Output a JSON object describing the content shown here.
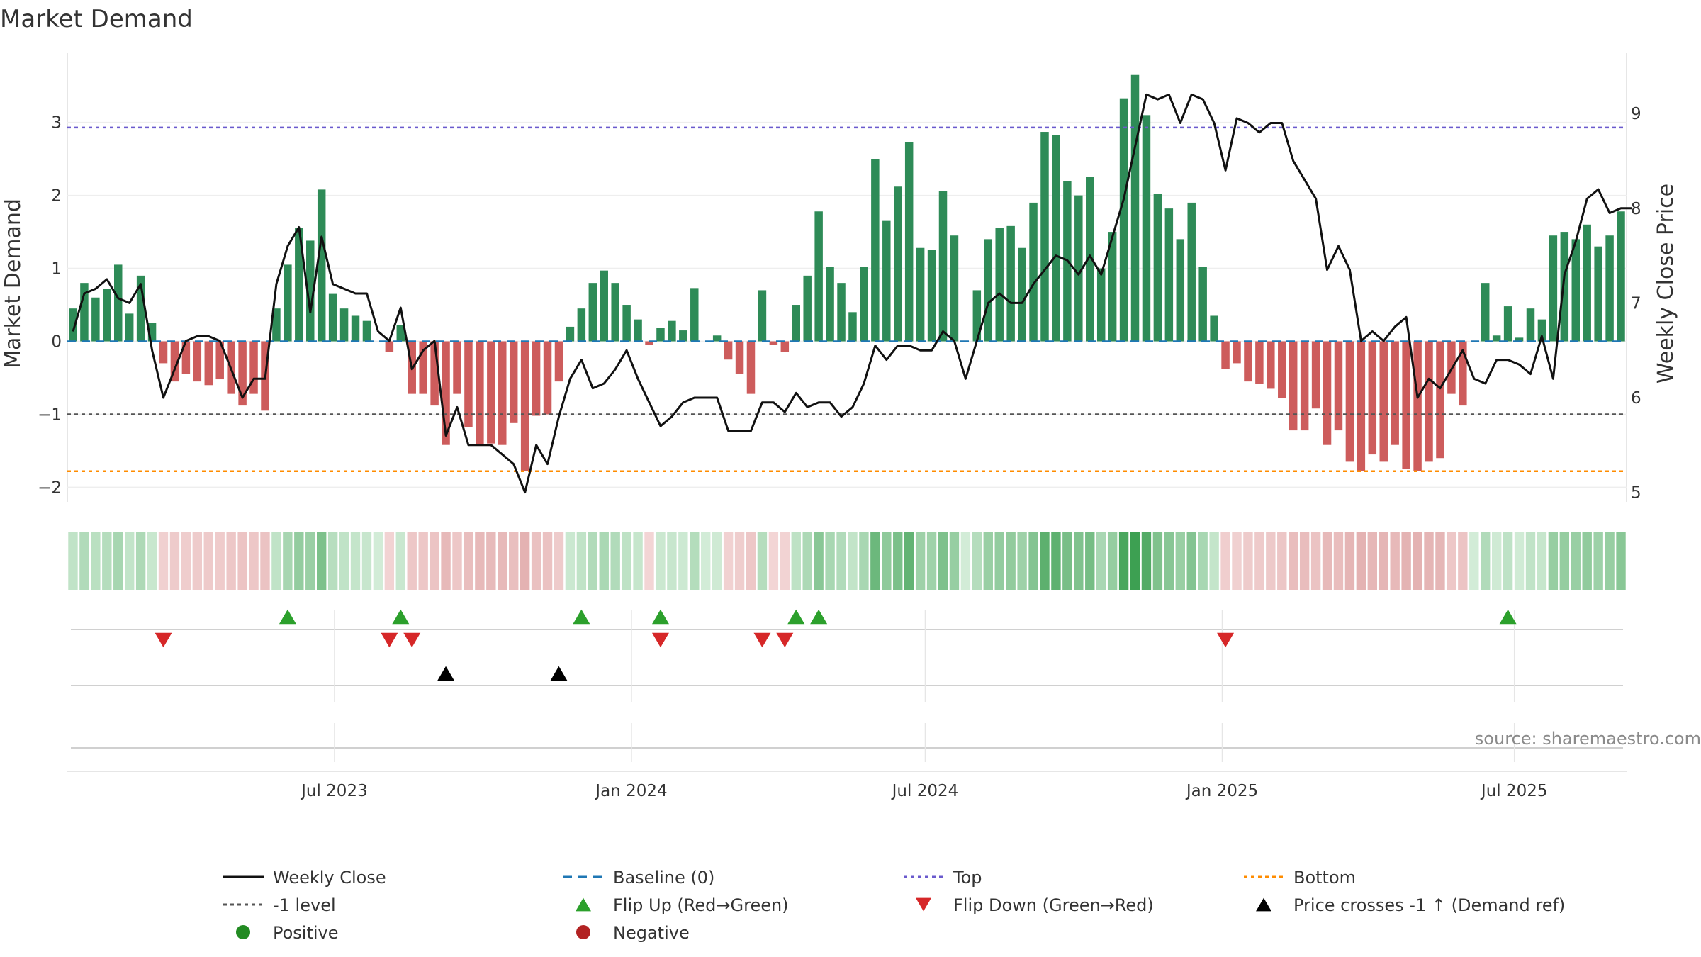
{
  "chart_data": {
    "type": "bar",
    "title": "Market Demand",
    "ylabel": "Market Demand",
    "y2label": "Weekly Close Price",
    "ylim": [
      -2.2,
      3.9
    ],
    "y2lim": [
      4.9,
      9.6
    ],
    "yticks": [
      "3",
      "2",
      "1",
      "0",
      "−1",
      "−2"
    ],
    "y2ticks": [
      "9",
      "8",
      "7",
      "6",
      "5"
    ],
    "ytick_values": [
      3,
      2,
      1,
      0,
      -1,
      -2
    ],
    "y2tick_values": [
      9,
      8,
      7,
      6,
      5
    ],
    "x_start": "2023-01-20",
    "x_step_days": 7,
    "xticks": [
      {
        "label": "Jul 2023",
        "date": "2023-07-01"
      },
      {
        "label": "Jan 2024",
        "date": "2024-01-01"
      },
      {
        "label": "Jul 2024",
        "date": "2024-07-01"
      },
      {
        "label": "Jan 2025",
        "date": "2025-01-01"
      },
      {
        "label": "Jul 2025",
        "date": "2025-07-01"
      }
    ],
    "reference_lines": {
      "top": 2.93,
      "minus_one": -1,
      "bottom": -1.78
    },
    "series": [
      {
        "name": "Market Demand",
        "values": [
          0.45,
          0.8,
          0.6,
          0.72,
          1.05,
          0.38,
          0.9,
          0.25,
          -0.3,
          -0.55,
          -0.45,
          -0.55,
          -0.6,
          -0.52,
          -0.72,
          -0.88,
          -0.72,
          -0.95,
          0.45,
          1.05,
          1.55,
          1.38,
          2.08,
          0.65,
          0.45,
          0.35,
          0.28,
          0.0,
          -0.15,
          0.22,
          -0.72,
          -0.72,
          -0.88,
          -1.42,
          -0.72,
          -1.18,
          -1.42,
          -1.4,
          -1.42,
          -1.12,
          -1.78,
          -1.02,
          -1.0,
          -0.55,
          0.2,
          0.45,
          0.8,
          0.97,
          0.8,
          0.5,
          0.3,
          -0.05,
          0.18,
          0.28,
          0.15,
          0.73,
          0.0,
          0.08,
          -0.25,
          -0.45,
          -0.72,
          0.7,
          -0.05,
          -0.15,
          0.5,
          0.9,
          1.78,
          1.02,
          0.8,
          0.4,
          1.02,
          2.5,
          1.65,
          2.12,
          2.73,
          1.28,
          1.25,
          2.06,
          1.45,
          0.0,
          0.7,
          1.4,
          1.55,
          1.58,
          1.28,
          1.9,
          2.87,
          2.83,
          2.2,
          2.0,
          2.25,
          1.0,
          1.5,
          3.33,
          3.65,
          3.1,
          2.02,
          1.82,
          1.4,
          1.9,
          1.02,
          0.35,
          -0.38,
          -0.3,
          -0.55,
          -0.58,
          -0.65,
          -0.78,
          -1.22,
          -1.22,
          -0.92,
          -1.42,
          -1.22,
          -1.65,
          -1.78,
          -1.55,
          -1.65,
          -1.42,
          -1.75,
          -1.78,
          -1.65,
          -1.6,
          -0.72,
          -0.88,
          0.0,
          0.8,
          0.08,
          0.48,
          0.05,
          0.45,
          0.3,
          1.45,
          1.5,
          1.4,
          1.6,
          1.3,
          1.45,
          1.78
        ]
      },
      {
        "name": "Weekly Close",
        "values": [
          6.7,
          7.1,
          7.15,
          7.25,
          7.05,
          7.0,
          7.2,
          6.5,
          6.0,
          6.3,
          6.6,
          6.65,
          6.65,
          6.6,
          6.3,
          6.0,
          6.2,
          6.2,
          7.2,
          7.6,
          7.8,
          6.9,
          7.7,
          7.2,
          7.15,
          7.1,
          7.1,
          6.7,
          6.6,
          6.95,
          6.3,
          6.5,
          6.6,
          5.6,
          5.9,
          5.5,
          5.5,
          5.5,
          5.4,
          5.3,
          5.0,
          5.5,
          5.3,
          5.8,
          6.2,
          6.4,
          6.1,
          6.15,
          6.3,
          6.5,
          6.2,
          5.95,
          5.7,
          5.8,
          5.95,
          6.0,
          6.0,
          6.0,
          5.65,
          5.65,
          5.65,
          5.95,
          5.95,
          5.85,
          6.05,
          5.9,
          5.95,
          5.95,
          5.8,
          5.9,
          6.15,
          6.55,
          6.4,
          6.55,
          6.55,
          6.5,
          6.5,
          6.7,
          6.6,
          6.2,
          6.6,
          7.0,
          7.1,
          7.0,
          7.0,
          7.2,
          7.35,
          7.5,
          7.45,
          7.3,
          7.5,
          7.3,
          7.7,
          8.1,
          8.65,
          9.2,
          9.15,
          9.2,
          8.9,
          9.2,
          9.15,
          8.9,
          8.4,
          8.95,
          8.9,
          8.8,
          8.9,
          8.9,
          8.5,
          8.3,
          8.1,
          7.35,
          7.6,
          7.35,
          6.6,
          6.7,
          6.6,
          6.75,
          6.85,
          6.0,
          6.2,
          6.1,
          6.3,
          6.5,
          6.2,
          6.15,
          6.4,
          6.4,
          6.35,
          6.25,
          6.65,
          6.2,
          7.3,
          7.65,
          8.1,
          8.2,
          7.95,
          8.0,
          8.0
        ]
      }
    ],
    "signals": {
      "flip_up_dates": [
        "2023-06-02",
        "2023-08-11",
        "2023-12-01",
        "2024-01-19",
        "2024-04-12",
        "2024-04-26",
        "2025-06-27"
      ],
      "flip_down_dates": [
        "2023-03-17",
        "2023-08-04",
        "2023-08-18",
        "2024-01-19",
        "2024-03-22",
        "2024-04-05",
        "2025-01-03"
      ],
      "price_cross_dates": [
        "2023-09-08",
        "2023-11-17"
      ]
    },
    "grid": true,
    "legend_position": "bottom",
    "legend": [
      {
        "label": "Weekly Close",
        "style": "solid-line",
        "color": "#111111"
      },
      {
        "label": "Baseline (0)",
        "style": "dashed-line",
        "color": "#1f77b4"
      },
      {
        "label": "Top",
        "style": "dotted-line",
        "color": "#6a5acd"
      },
      {
        "label": "Bottom",
        "style": "dotted-line",
        "color": "#ff8c00"
      },
      {
        "label": "-1 level",
        "style": "dotted-line",
        "color": "#555555"
      },
      {
        "label": "Flip Up (Red→Green)",
        "style": "triangle-up",
        "color": "#2ca02c"
      },
      {
        "label": "Flip Down (Green→Red)",
        "style": "triangle-down",
        "color": "#d62728"
      },
      {
        "label": "Price crosses -1 ↑ (Demand ref)",
        "style": "triangle-up",
        "color": "#000000"
      },
      {
        "label": "Positive",
        "style": "circle",
        "color": "#228b22"
      },
      {
        "label": "Negative",
        "style": "circle",
        "color": "#b22222"
      }
    ]
  },
  "source_text": "source: sharemaestro.com",
  "colors": {
    "positive_bar": "#2e8b57",
    "negative_bar": "#cd5c5c",
    "price_line": "#111111"
  }
}
